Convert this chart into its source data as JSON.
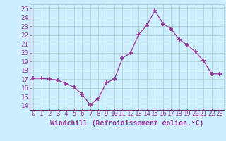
{
  "x": [
    0,
    1,
    2,
    3,
    4,
    5,
    6,
    7,
    8,
    9,
    10,
    11,
    12,
    13,
    14,
    15,
    16,
    17,
    18,
    19,
    20,
    21,
    22,
    23
  ],
  "y": [
    17.1,
    17.1,
    17.0,
    16.9,
    16.5,
    16.1,
    15.3,
    14.1,
    14.8,
    16.6,
    17.0,
    19.4,
    20.0,
    22.1,
    23.1,
    24.8,
    23.3,
    22.7,
    21.5,
    20.9,
    20.1,
    19.1,
    17.6,
    17.6
  ],
  "line_color": "#993399",
  "marker": "+",
  "marker_size": 4,
  "bg_color": "#cceeff",
  "grid_color": "#aacccc",
  "xlabel": "Windchill (Refroidissement éolien,°C)",
  "ylabel_ticks": [
    14,
    15,
    16,
    17,
    18,
    19,
    20,
    21,
    22,
    23,
    24,
    25
  ],
  "ylim": [
    13.5,
    25.5
  ],
  "xlim": [
    -0.5,
    23.5
  ],
  "xticks": [
    0,
    1,
    2,
    3,
    4,
    5,
    6,
    7,
    8,
    9,
    10,
    11,
    12,
    13,
    14,
    15,
    16,
    17,
    18,
    19,
    20,
    21,
    22,
    23
  ],
  "tick_fontsize": 6.5,
  "label_fontsize": 7
}
